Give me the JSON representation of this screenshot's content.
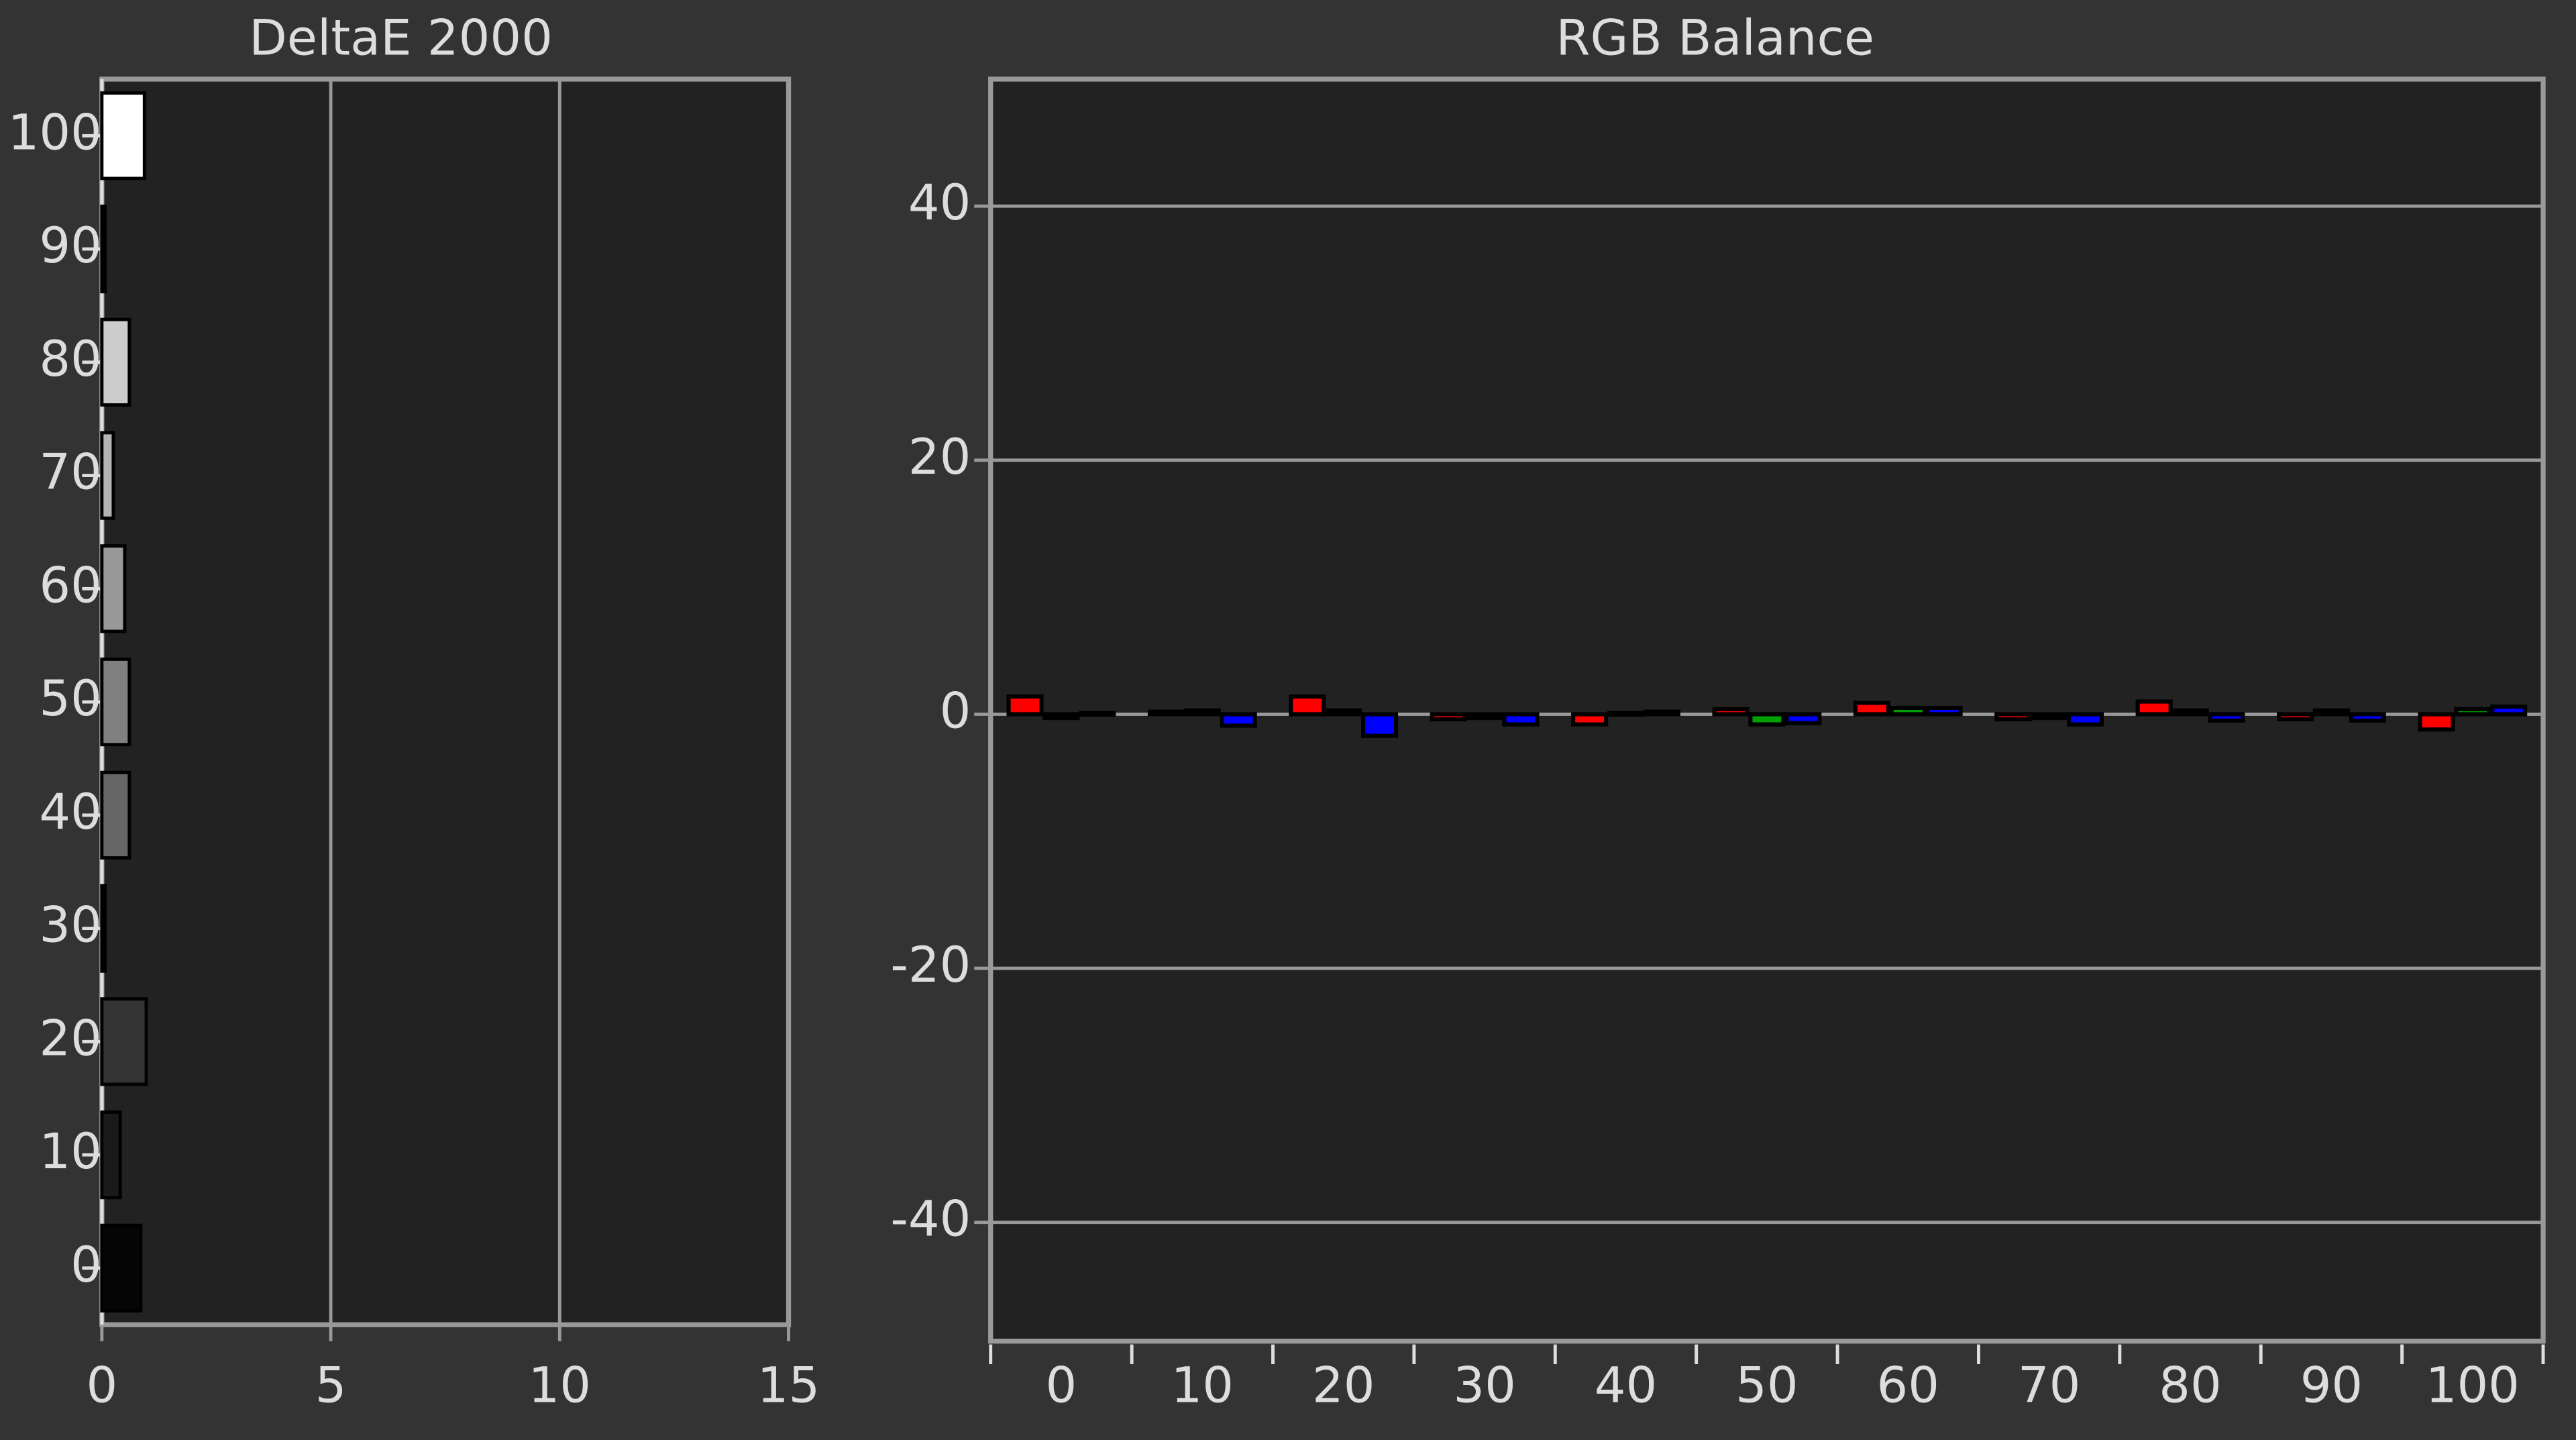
{
  "chart_data": [
    {
      "type": "hbar",
      "title": "DeltaE 2000",
      "categories": [
        0,
        10,
        20,
        30,
        40,
        50,
        60,
        70,
        80,
        90,
        100
      ],
      "values": [
        0.85,
        0.4,
        0.97,
        0.07,
        0.6,
        0.6,
        0.5,
        0.25,
        0.6,
        0.07,
        0.93
      ],
      "colors": [
        "#050505",
        "#1a1a1a",
        "#333333",
        "#4d4d4d",
        "#666666",
        "#808080",
        "#999999",
        "#b3b3b3",
        "#cccccc",
        "#e6e6e6",
        "#ffffff"
      ],
      "xlim": [
        0,
        15
      ],
      "xticks": [
        0,
        5,
        10,
        15
      ],
      "grid": true
    },
    {
      "type": "groupedbar",
      "title": "RGB Balance",
      "categories": [
        0,
        10,
        20,
        30,
        40,
        50,
        60,
        70,
        80,
        90,
        100
      ],
      "series": [
        {
          "color": "#ff0000",
          "values": [
            1.4,
            0.2,
            1.4,
            -0.4,
            -0.8,
            0.4,
            0.9,
            -0.4,
            1.0,
            -0.4,
            -1.2
          ]
        },
        {
          "color": "#00a000",
          "values": [
            -0.3,
            0.3,
            0.3,
            -0.3,
            0.1,
            -0.8,
            0.5,
            -0.3,
            0.3,
            0.3,
            0.4
          ]
        },
        {
          "color": "#0000ff",
          "values": [
            0.1,
            -0.9,
            -1.7,
            -0.8,
            0.2,
            -0.7,
            0.5,
            -0.8,
            -0.5,
            -0.5,
            0.6
          ]
        }
      ],
      "ylim": [
        -50,
        50
      ],
      "yticks": [
        -40,
        -20,
        0,
        20,
        40
      ],
      "grid": true
    }
  ]
}
